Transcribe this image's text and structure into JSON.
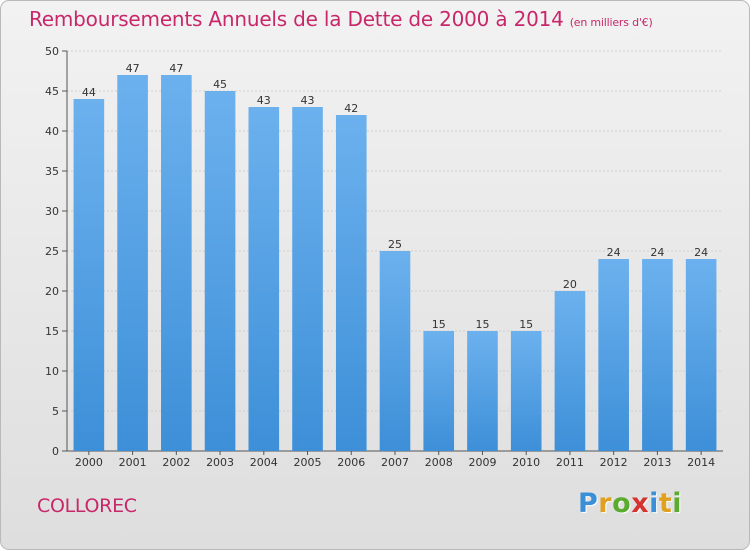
{
  "title": "Remboursements Annuels de la Dette de 2000 à 2014",
  "subtitle": "(en milliers d'€)",
  "commune": "COLLOREC",
  "logo": {
    "letters": [
      "P",
      "r",
      "o",
      "x",
      "i",
      "t",
      "i"
    ],
    "colors": [
      "#3a8fd6",
      "#e0a020",
      "#5aab2e",
      "#d6322f",
      "#3a8fd6",
      "#e0a020",
      "#5aab2e"
    ]
  },
  "colors": {
    "bar": "#3d8fd8",
    "bar_light": "#6cb1ee",
    "accent": "#c8286a"
  },
  "chart_data": {
    "type": "bar",
    "categories": [
      "2000",
      "2001",
      "2002",
      "2003",
      "2004",
      "2005",
      "2006",
      "2007",
      "2008",
      "2009",
      "2010",
      "2011",
      "2012",
      "2013",
      "2014"
    ],
    "values": [
      44,
      47,
      47,
      45,
      43,
      43,
      42,
      25,
      15,
      15,
      15,
      20,
      24,
      24,
      24
    ],
    "ylim": [
      0,
      50
    ],
    "yticks": [
      0,
      5,
      10,
      15,
      20,
      25,
      30,
      35,
      40,
      45,
      50
    ],
    "grid": true,
    "data_labels": true
  }
}
